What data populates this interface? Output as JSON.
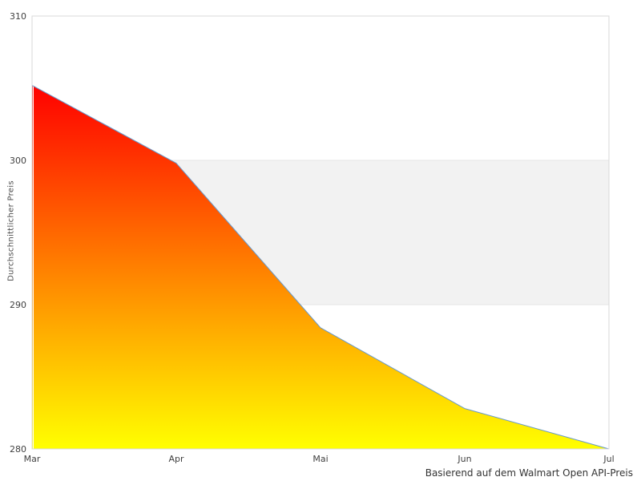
{
  "chart_data": {
    "type": "area",
    "title": "",
    "categories": [
      "Mar",
      "Apr",
      "Mai",
      "Jun",
      "Jul"
    ],
    "values": [
      305.2,
      299.8,
      288.4,
      282.8,
      280
    ],
    "xlabel": "",
    "ylabel": "Durchschnittlicher Preis",
    "caption": "Basierend auf dem Walmart Open API-Preis",
    "ylim": [
      280,
      310
    ],
    "yticks": [
      310,
      300,
      290,
      280
    ],
    "plot_band": {
      "from": 290,
      "to": 300
    },
    "grid": false,
    "legend": "none",
    "markers": "none",
    "colors": {
      "area_top": "#ff0000",
      "area_bottom": "#ffff00",
      "line": "#6699cc",
      "band_fill": "#f2f2f2",
      "band_edge": "#e6e6e6",
      "plot_border": "#d8d8d8",
      "axis_overlay": "#ffffff",
      "label_text": "#404040",
      "background": "#ffffff"
    }
  }
}
